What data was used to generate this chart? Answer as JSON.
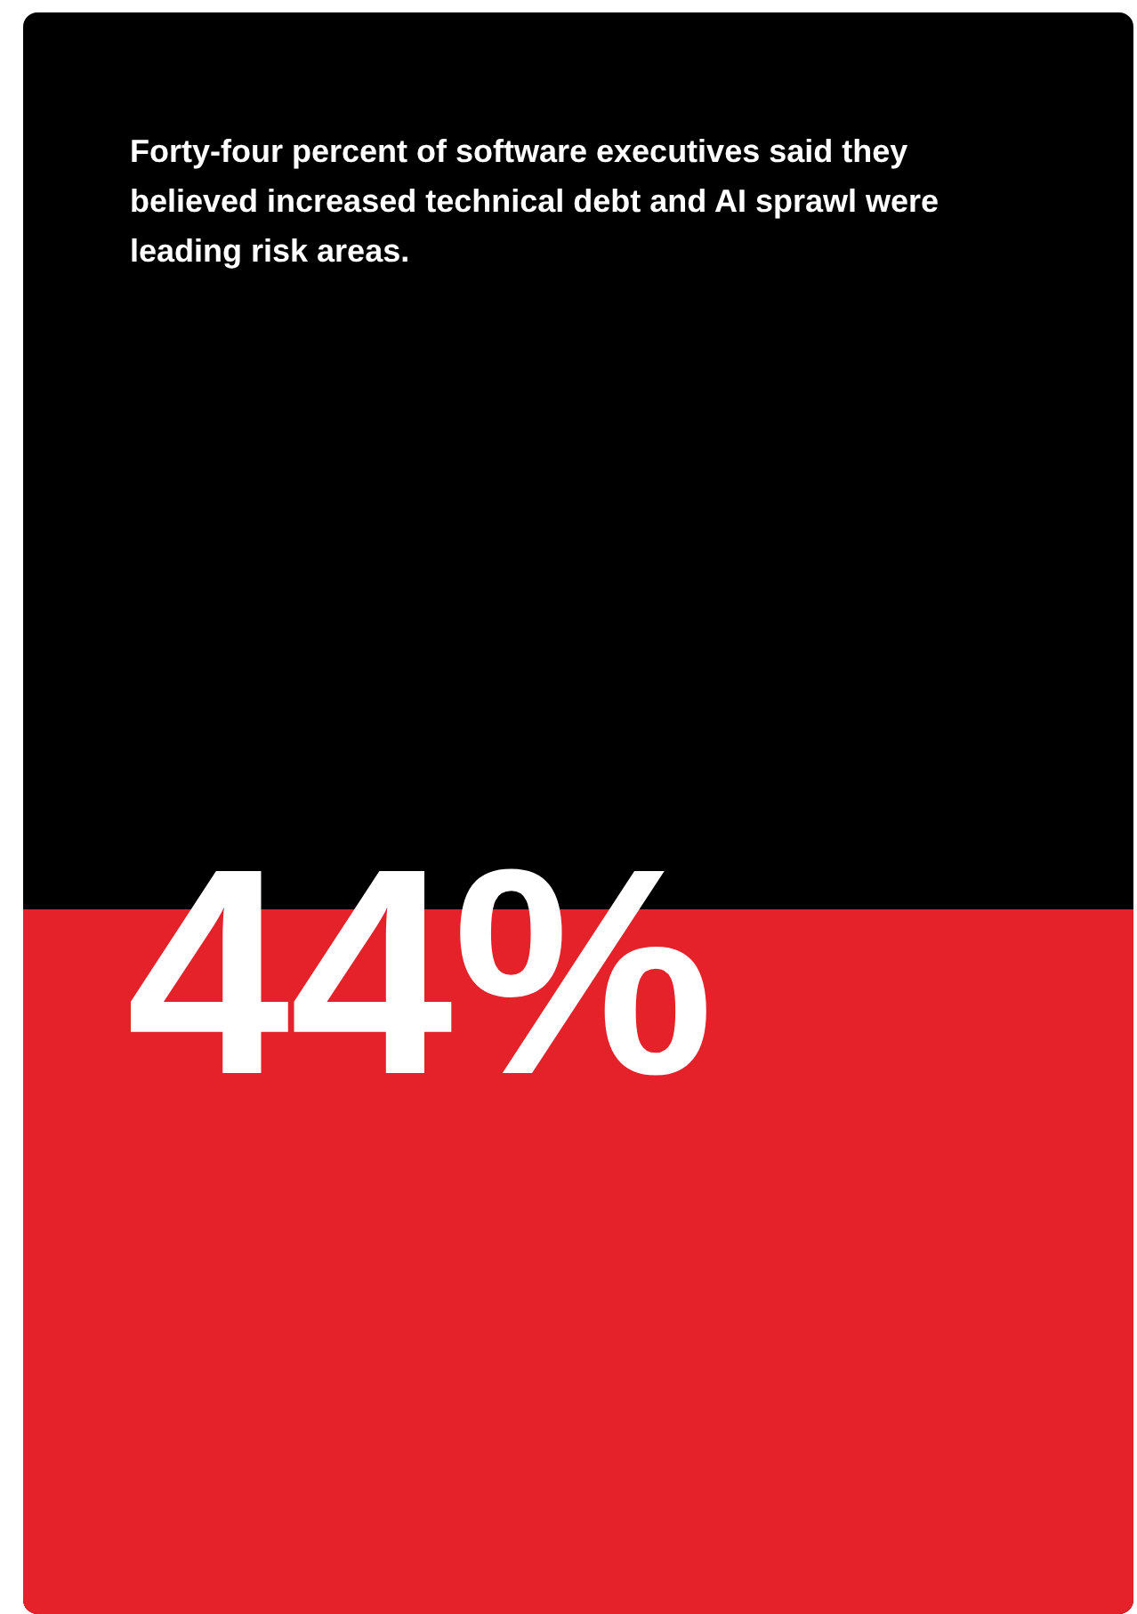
{
  "chart_data": {
    "type": "bar",
    "title": "Forty-four percent of software executives said they believed increased technical debt and AI sprawl were leading risk areas.",
    "categories": [
      null
    ],
    "values": [
      44
    ],
    "value_labels": [
      "44%"
    ],
    "color": "#e52229",
    "ylim": [
      0,
      100
    ],
    "tick_labels": false
  }
}
